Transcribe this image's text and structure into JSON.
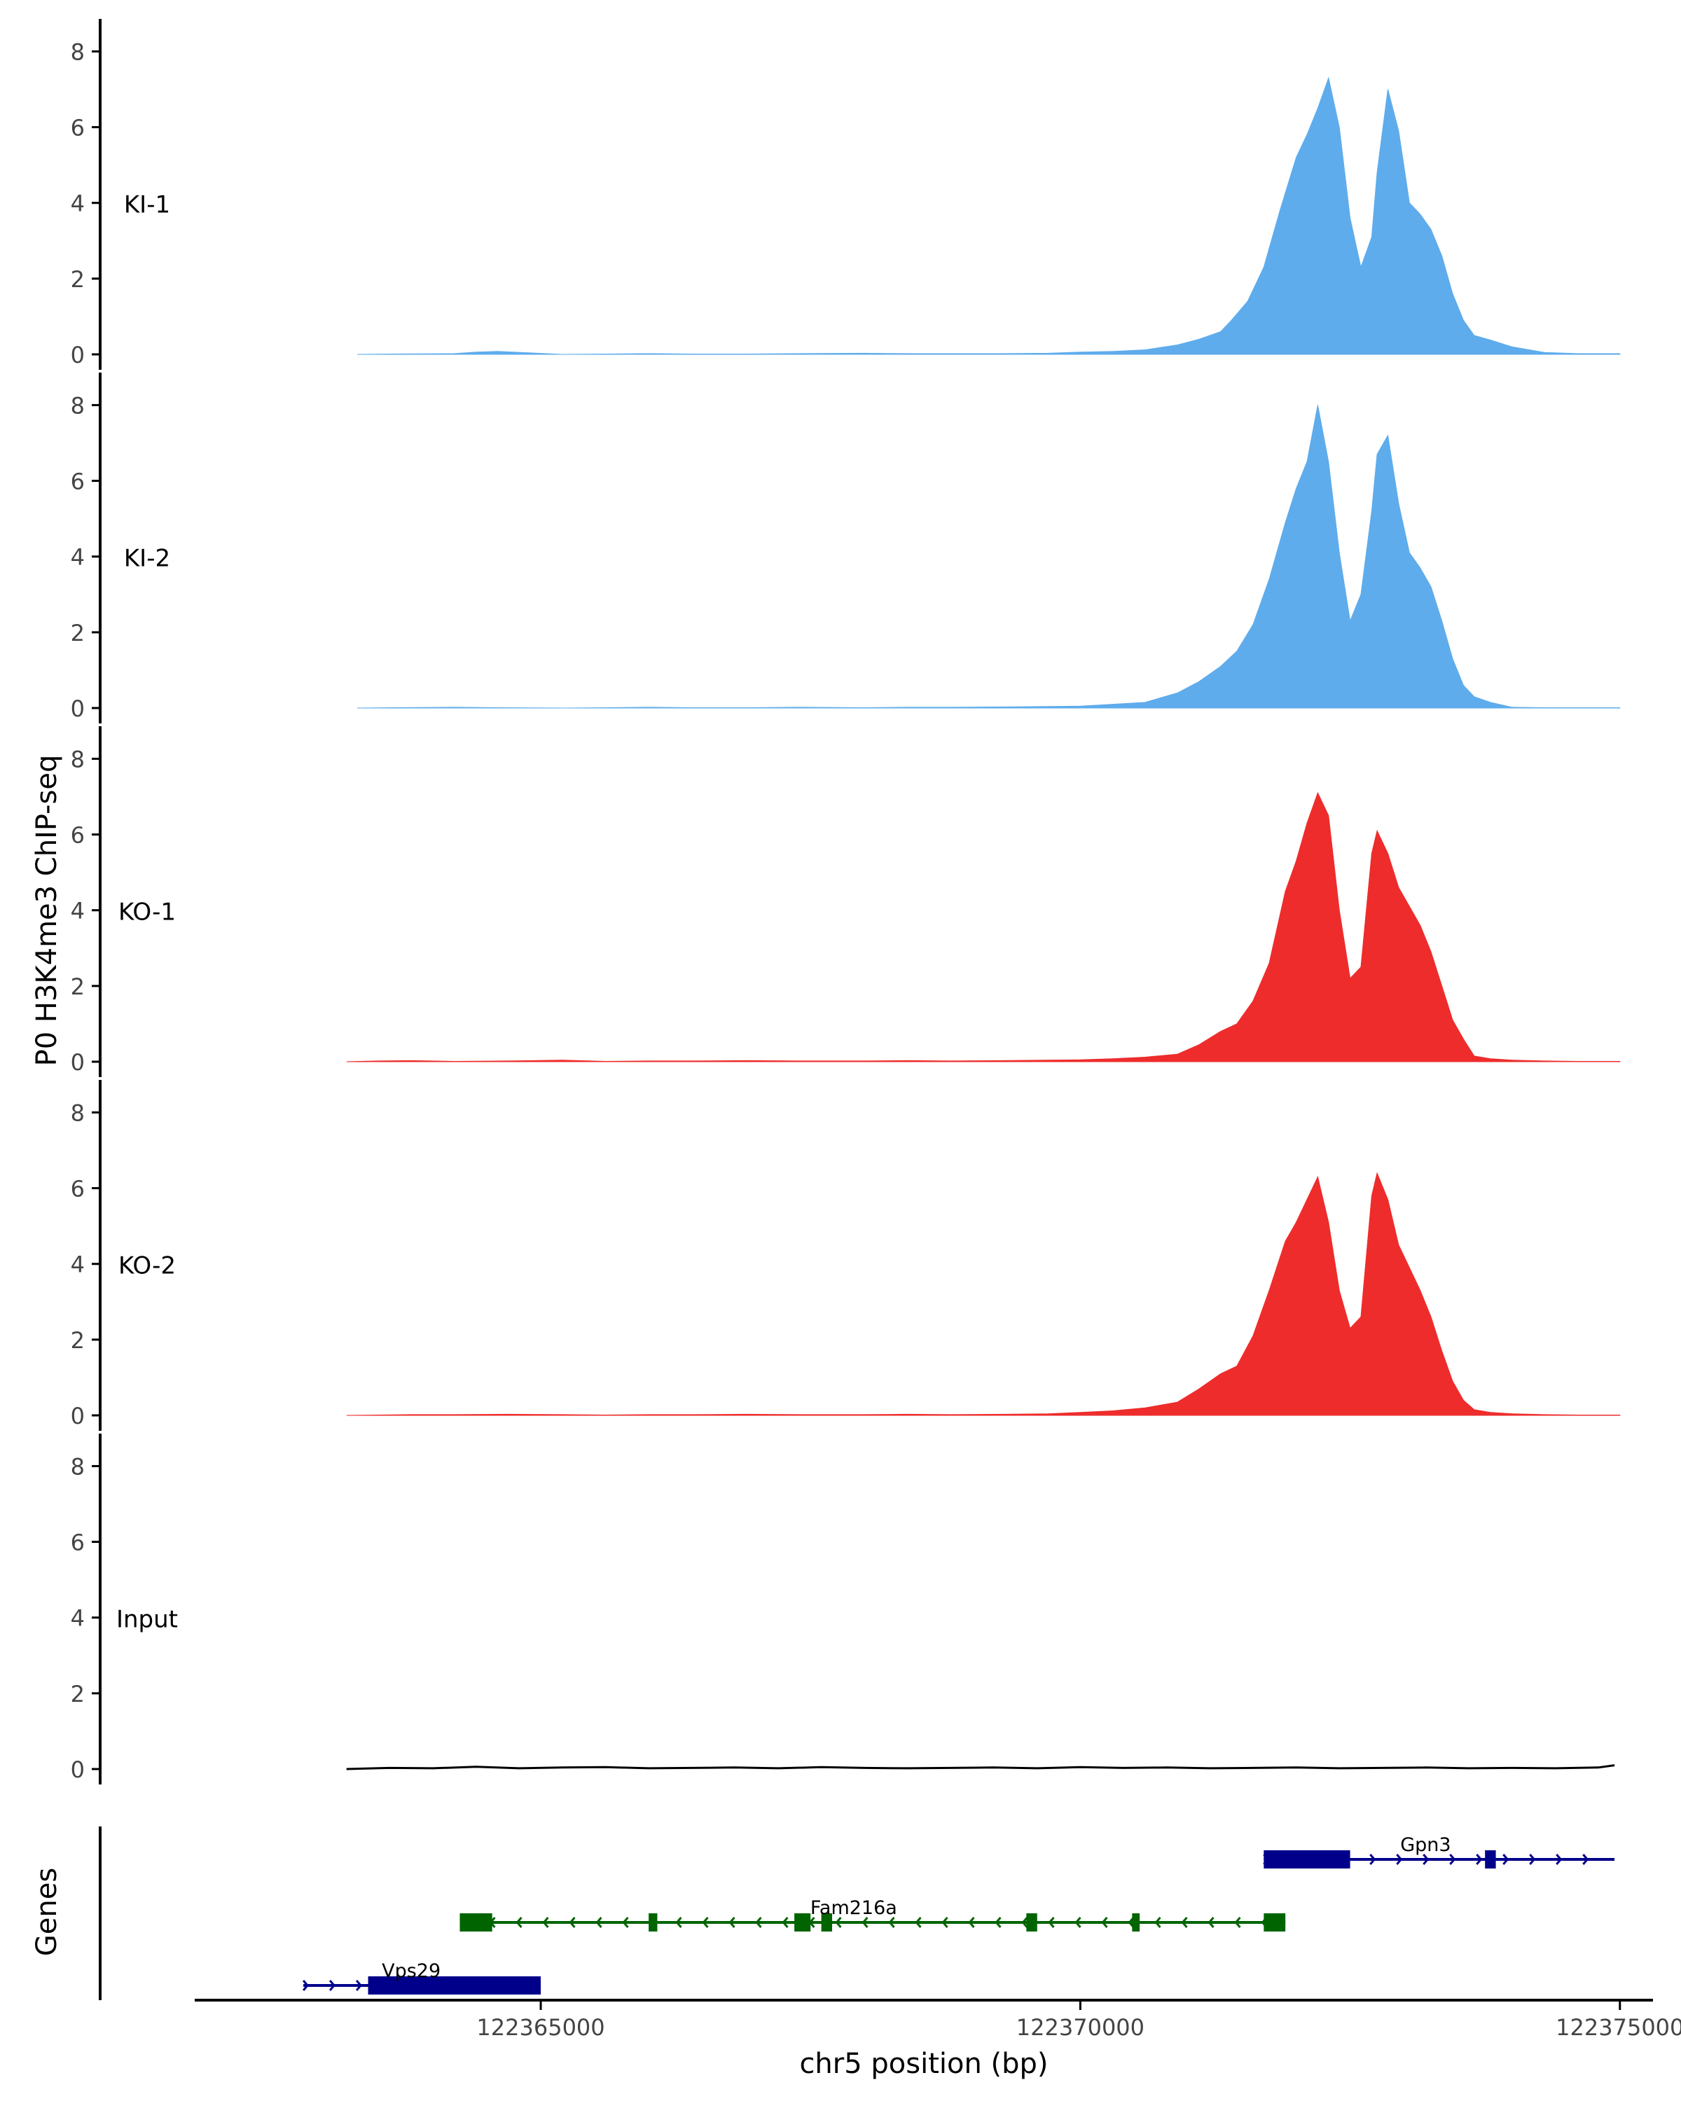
{
  "chart_data": {
    "type": "area",
    "ylabel": "P0 H3K4me3 ChIP-seq",
    "xlabel": "chr5 position (bp)",
    "genes_label": "Genes",
    "x_range": [
      122361800,
      122375300
    ],
    "x_ticks": [
      122365000,
      122370000,
      122375000
    ],
    "x_tick_labels": [
      "122365000",
      "122370000",
      "122375000"
    ],
    "y_range": [
      0,
      8.6
    ],
    "y_ticks": [
      0,
      2,
      4,
      6,
      8
    ],
    "y_tick_labels": [
      "0",
      "2",
      "4",
      "6",
      "8"
    ],
    "colors": {
      "ki": "#5eacec",
      "ko": "#ee2c2c",
      "input": "#000000",
      "gene_plus": "#00008b",
      "gene_minus": "#006400",
      "axis": "#000000",
      "tick_text": "#444444"
    },
    "series": [
      {
        "name": "KI-1",
        "color": "#5eacec",
        "x": [
          122363300,
          122363600,
          122364200,
          122364400,
          122364600,
          122365200,
          122365600,
          122366000,
          122366400,
          122366900,
          122367400,
          122368000,
          122368400,
          122368800,
          122369300,
          122369700,
          122370000,
          122370300,
          122370600,
          122370900,
          122371100,
          122371300,
          122371400,
          122371550,
          122371700,
          122371850,
          122372000,
          122372100,
          122372200,
          122372300,
          122372400,
          122372500,
          122372600,
          122372700,
          122372750,
          122372850,
          122372950,
          122373050,
          122373150,
          122373250,
          122373350,
          122373450,
          122373550,
          122373650,
          122373800,
          122374000,
          122374300,
          122374600,
          122375000
        ],
        "values": [
          0.0,
          0.01,
          0.02,
          0.06,
          0.08,
          0.0,
          0.01,
          0.02,
          0.01,
          0.01,
          0.02,
          0.03,
          0.02,
          0.02,
          0.02,
          0.03,
          0.06,
          0.08,
          0.12,
          0.25,
          0.4,
          0.6,
          0.9,
          1.4,
          2.3,
          3.8,
          5.2,
          5.8,
          6.5,
          7.3,
          6.0,
          3.6,
          2.3,
          3.1,
          4.8,
          7.0,
          5.9,
          4.0,
          3.7,
          3.3,
          2.6,
          1.6,
          0.9,
          0.5,
          0.38,
          0.2,
          0.05,
          0.02,
          0.02
        ]
      },
      {
        "name": "KI-2",
        "color": "#5eacec",
        "x": [
          122363300,
          122363600,
          122364200,
          122364600,
          122365200,
          122365600,
          122366000,
          122366400,
          122366900,
          122367400,
          122368000,
          122368400,
          122368800,
          122369300,
          122369700,
          122370000,
          122370300,
          122370600,
          122370900,
          122371100,
          122371300,
          122371450,
          122371600,
          122371750,
          122371900,
          122372000,
          122372100,
          122372200,
          122372300,
          122372400,
          122372500,
          122372600,
          122372700,
          122372750,
          122372850,
          122372950,
          122373050,
          122373150,
          122373250,
          122373350,
          122373450,
          122373550,
          122373650,
          122373800,
          122374000,
          122374300,
          122374600,
          122375000
        ],
        "values": [
          0.0,
          0.01,
          0.02,
          0.01,
          0.0,
          0.01,
          0.02,
          0.01,
          0.01,
          0.02,
          0.01,
          0.02,
          0.02,
          0.03,
          0.04,
          0.05,
          0.1,
          0.15,
          0.4,
          0.7,
          1.1,
          1.5,
          2.2,
          3.4,
          4.9,
          5.8,
          6.5,
          8.0,
          6.5,
          4.1,
          2.3,
          3.0,
          5.2,
          6.7,
          7.2,
          5.4,
          4.1,
          3.7,
          3.2,
          2.3,
          1.3,
          0.6,
          0.3,
          0.15,
          0.02,
          0.01,
          0.01,
          0.01
        ]
      },
      {
        "name": "KO-1",
        "color": "#ee2c2c",
        "x": [
          122363200,
          122363500,
          122363800,
          122364200,
          122364700,
          122365200,
          122365600,
          122366000,
          122366400,
          122366900,
          122367400,
          122368000,
          122368400,
          122368800,
          122369300,
          122369700,
          122370000,
          122370300,
          122370600,
          122370900,
          122371100,
          122371300,
          122371450,
          122371600,
          122371750,
          122371900,
          122372000,
          122372100,
          122372200,
          122372300,
          122372400,
          122372500,
          122372600,
          122372700,
          122372750,
          122372850,
          122372950,
          122373050,
          122373150,
          122373250,
          122373350,
          122373450,
          122373550,
          122373650,
          122373800,
          122374000,
          122374300,
          122374600,
          122375000
        ],
        "values": [
          0.0,
          0.02,
          0.03,
          0.01,
          0.02,
          0.04,
          0.01,
          0.02,
          0.02,
          0.03,
          0.02,
          0.02,
          0.03,
          0.02,
          0.03,
          0.04,
          0.05,
          0.08,
          0.12,
          0.2,
          0.45,
          0.8,
          1.0,
          1.6,
          2.6,
          4.5,
          5.3,
          6.3,
          7.1,
          6.5,
          4.0,
          2.2,
          2.5,
          5.5,
          6.1,
          5.5,
          4.6,
          4.1,
          3.6,
          2.9,
          2.0,
          1.1,
          0.6,
          0.15,
          0.08,
          0.04,
          0.02,
          0.01,
          0.01
        ]
      },
      {
        "name": "KO-2",
        "color": "#ee2c2c",
        "x": [
          122363200,
          122363500,
          122363800,
          122364200,
          122364700,
          122365200,
          122365600,
          122366000,
          122366400,
          122366900,
          122367400,
          122368000,
          122368400,
          122368800,
          122369300,
          122369700,
          122370000,
          122370300,
          122370600,
          122370900,
          122371100,
          122371300,
          122371450,
          122371600,
          122371750,
          122371900,
          122372000,
          122372100,
          122372200,
          122372300,
          122372400,
          122372500,
          122372600,
          122372700,
          122372750,
          122372850,
          122372950,
          122373050,
          122373150,
          122373250,
          122373350,
          122373450,
          122373550,
          122373650,
          122373800,
          122374000,
          122374300,
          122374600,
          122375000
        ],
        "values": [
          0.0,
          0.01,
          0.02,
          0.02,
          0.03,
          0.02,
          0.01,
          0.02,
          0.02,
          0.03,
          0.02,
          0.02,
          0.03,
          0.02,
          0.03,
          0.04,
          0.08,
          0.12,
          0.2,
          0.35,
          0.7,
          1.1,
          1.3,
          2.1,
          3.3,
          4.6,
          5.1,
          5.7,
          6.3,
          5.1,
          3.3,
          2.3,
          2.6,
          5.8,
          6.4,
          5.7,
          4.5,
          3.9,
          3.3,
          2.6,
          1.7,
          0.9,
          0.4,
          0.15,
          0.08,
          0.04,
          0.02,
          0.01,
          0.01
        ]
      },
      {
        "name": "Input",
        "color": "#000000",
        "x": [
          122363200,
          122363600,
          122364000,
          122364400,
          122364800,
          122365200,
          122365600,
          122366000,
          122366400,
          122366800,
          122367200,
          122367600,
          122368000,
          122368400,
          122368800,
          122369200,
          122369600,
          122370000,
          122370400,
          122370800,
          122371200,
          122371600,
          122372000,
          122372400,
          122372800,
          122373200,
          122373600,
          122374000,
          122374400,
          122374800,
          122374950
        ],
        "values": [
          0.0,
          0.03,
          0.02,
          0.06,
          0.02,
          0.04,
          0.05,
          0.02,
          0.03,
          0.04,
          0.02,
          0.05,
          0.03,
          0.02,
          0.03,
          0.04,
          0.02,
          0.05,
          0.03,
          0.04,
          0.02,
          0.03,
          0.04,
          0.02,
          0.03,
          0.04,
          0.02,
          0.03,
          0.02,
          0.04,
          0.1
        ]
      }
    ],
    "genes": [
      {
        "name": "Gpn3",
        "strand": "+",
        "row": 0,
        "start": 122371700,
        "end": 122374950,
        "exons": [
          [
            122371700,
            122372500
          ],
          [
            122373750,
            122373850
          ]
        ],
        "label_pos": 122373200
      },
      {
        "name": "Fam216a",
        "strand": "-",
        "row": 1,
        "start": 122364250,
        "end": 122371900,
        "exons": [
          [
            122364250,
            122364550
          ],
          [
            122366000,
            122366080
          ],
          [
            122367350,
            122367500
          ],
          [
            122367600,
            122367700
          ],
          [
            122369500,
            122369600
          ],
          [
            122370480,
            122370550
          ],
          [
            122371700,
            122371900
          ]
        ],
        "label_pos": 122367900
      },
      {
        "name": "Vps29",
        "strand": "+",
        "row": 2,
        "start": 122362800,
        "end": 122365000,
        "exons": [
          [
            122363400,
            122365000
          ]
        ],
        "label_pos": 122363800
      }
    ]
  }
}
